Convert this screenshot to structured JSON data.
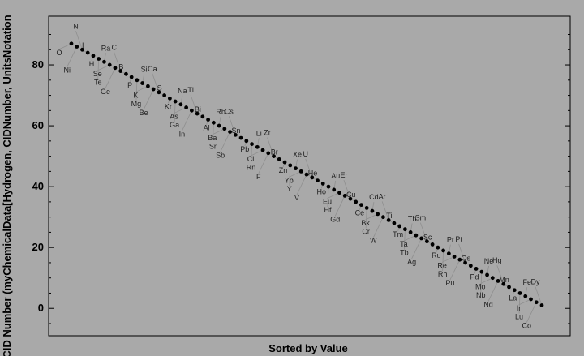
{
  "chart_data": {
    "type": "scatter",
    "xlabel": "Sorted by Value",
    "ylabel": "CID Number (myChemicalData[Hydrogen, CIDNumber, UnitsNotation",
    "ylim": [
      -9,
      96
    ],
    "yticks": [
      0,
      20,
      40,
      60,
      80
    ],
    "grid": false,
    "legend": "none",
    "point_color": "#000000",
    "callout_color": "#8f8f8f",
    "values": [
      87,
      86,
      85,
      84,
      83,
      82,
      81,
      80,
      79,
      78,
      77,
      76,
      75,
      74,
      73,
      72,
      71,
      70,
      69,
      68,
      67,
      66,
      65,
      64,
      63,
      62,
      61,
      60,
      59,
      58,
      57,
      56,
      55,
      54,
      53,
      52,
      51,
      50,
      49,
      48,
      47,
      46,
      45,
      44,
      43,
      42,
      41,
      40,
      39,
      38,
      37,
      36,
      35,
      34,
      33,
      32,
      31,
      30,
      29,
      28,
      27,
      26,
      25,
      24,
      23,
      22,
      21,
      20,
      19,
      18,
      17,
      16,
      15,
      14,
      13,
      12,
      11,
      10,
      9,
      8,
      7,
      6,
      5,
      4,
      3,
      2,
      1
    ],
    "labels": [
      "O",
      "Ni",
      "N",
      "I",
      "H",
      "Te",
      "Ra",
      "Se",
      "Ge",
      "C",
      "B",
      "P",
      "Mg",
      "Si",
      "K",
      "Be",
      "Ca",
      "S",
      "Kr",
      "Ga",
      "Na",
      "As",
      "In",
      "Tl",
      "Bi",
      "Al",
      "Sr",
      "Rb",
      "Ba",
      "Sb",
      "Cs",
      "Sn",
      "Pb",
      "Rn",
      "Li",
      "Cl",
      "F",
      "Zr",
      "Br",
      "Zn",
      "Y",
      "Xe",
      "Yb",
      "V",
      "U",
      "He",
      "Ho",
      "Hf",
      "Au",
      "Eu",
      "Gd",
      "Er",
      "Cu",
      "Ce",
      "Cr",
      "Cd",
      "Bk",
      "W",
      "Ar",
      "Ti",
      "Tm",
      "Tb",
      "Th",
      "Ta",
      "Ag",
      "Sm",
      "Sc",
      "Ru",
      "Rh",
      "Pr",
      "Re",
      "Pu",
      "Pt",
      "Os",
      "Pd",
      "Nb",
      "Ne",
      "Mo",
      "Nd",
      "Hg",
      "Mn",
      "La",
      "Lu",
      "Fe",
      "Ir",
      "Co",
      "Dy"
    ]
  }
}
